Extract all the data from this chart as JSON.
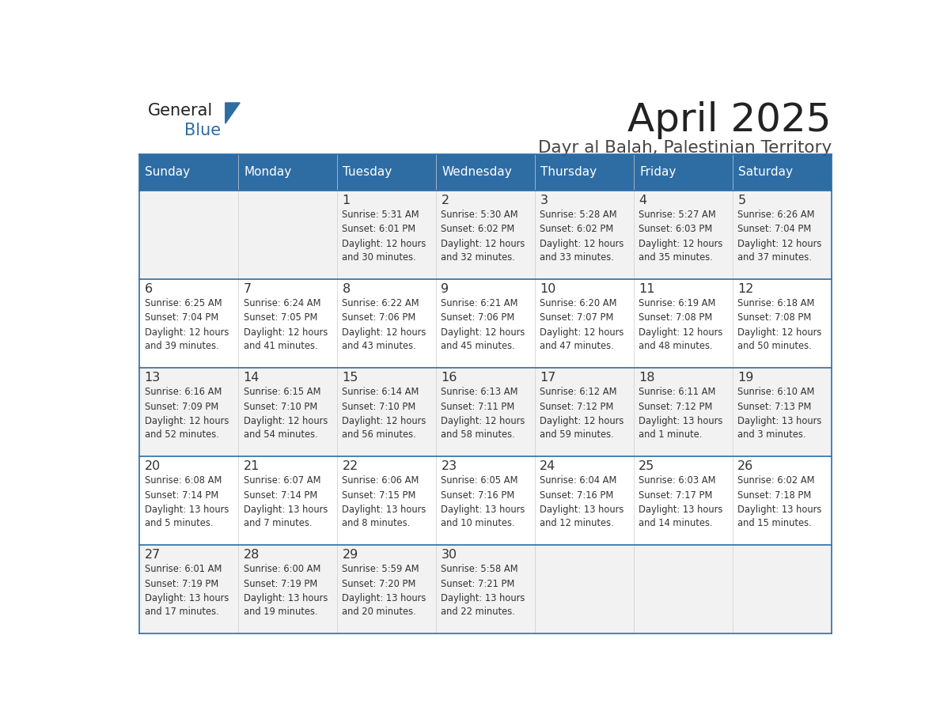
{
  "title": "April 2025",
  "subtitle": "Dayr al Balah, Palestinian Territory",
  "days_of_week": [
    "Sunday",
    "Monday",
    "Tuesday",
    "Wednesday",
    "Thursday",
    "Friday",
    "Saturday"
  ],
  "header_bg": "#2E6DA4",
  "header_text": "#FFFFFF",
  "row_bg_odd": "#F2F2F2",
  "row_bg_even": "#FFFFFF",
  "border_color": "#2E6DA4",
  "text_color": "#333333",
  "calendar_data": [
    [
      {
        "day": "",
        "sunrise": "",
        "sunset": "",
        "daylight": ""
      },
      {
        "day": "",
        "sunrise": "",
        "sunset": "",
        "daylight": ""
      },
      {
        "day": "1",
        "sunrise": "Sunrise: 5:31 AM",
        "sunset": "Sunset: 6:01 PM",
        "daylight": "Daylight: 12 hours\nand 30 minutes."
      },
      {
        "day": "2",
        "sunrise": "Sunrise: 5:30 AM",
        "sunset": "Sunset: 6:02 PM",
        "daylight": "Daylight: 12 hours\nand 32 minutes."
      },
      {
        "day": "3",
        "sunrise": "Sunrise: 5:28 AM",
        "sunset": "Sunset: 6:02 PM",
        "daylight": "Daylight: 12 hours\nand 33 minutes."
      },
      {
        "day": "4",
        "sunrise": "Sunrise: 5:27 AM",
        "sunset": "Sunset: 6:03 PM",
        "daylight": "Daylight: 12 hours\nand 35 minutes."
      },
      {
        "day": "5",
        "sunrise": "Sunrise: 6:26 AM",
        "sunset": "Sunset: 7:04 PM",
        "daylight": "Daylight: 12 hours\nand 37 minutes."
      }
    ],
    [
      {
        "day": "6",
        "sunrise": "Sunrise: 6:25 AM",
        "sunset": "Sunset: 7:04 PM",
        "daylight": "Daylight: 12 hours\nand 39 minutes."
      },
      {
        "day": "7",
        "sunrise": "Sunrise: 6:24 AM",
        "sunset": "Sunset: 7:05 PM",
        "daylight": "Daylight: 12 hours\nand 41 minutes."
      },
      {
        "day": "8",
        "sunrise": "Sunrise: 6:22 AM",
        "sunset": "Sunset: 7:06 PM",
        "daylight": "Daylight: 12 hours\nand 43 minutes."
      },
      {
        "day": "9",
        "sunrise": "Sunrise: 6:21 AM",
        "sunset": "Sunset: 7:06 PM",
        "daylight": "Daylight: 12 hours\nand 45 minutes."
      },
      {
        "day": "10",
        "sunrise": "Sunrise: 6:20 AM",
        "sunset": "Sunset: 7:07 PM",
        "daylight": "Daylight: 12 hours\nand 47 minutes."
      },
      {
        "day": "11",
        "sunrise": "Sunrise: 6:19 AM",
        "sunset": "Sunset: 7:08 PM",
        "daylight": "Daylight: 12 hours\nand 48 minutes."
      },
      {
        "day": "12",
        "sunrise": "Sunrise: 6:18 AM",
        "sunset": "Sunset: 7:08 PM",
        "daylight": "Daylight: 12 hours\nand 50 minutes."
      }
    ],
    [
      {
        "day": "13",
        "sunrise": "Sunrise: 6:16 AM",
        "sunset": "Sunset: 7:09 PM",
        "daylight": "Daylight: 12 hours\nand 52 minutes."
      },
      {
        "day": "14",
        "sunrise": "Sunrise: 6:15 AM",
        "sunset": "Sunset: 7:10 PM",
        "daylight": "Daylight: 12 hours\nand 54 minutes."
      },
      {
        "day": "15",
        "sunrise": "Sunrise: 6:14 AM",
        "sunset": "Sunset: 7:10 PM",
        "daylight": "Daylight: 12 hours\nand 56 minutes."
      },
      {
        "day": "16",
        "sunrise": "Sunrise: 6:13 AM",
        "sunset": "Sunset: 7:11 PM",
        "daylight": "Daylight: 12 hours\nand 58 minutes."
      },
      {
        "day": "17",
        "sunrise": "Sunrise: 6:12 AM",
        "sunset": "Sunset: 7:12 PM",
        "daylight": "Daylight: 12 hours\nand 59 minutes."
      },
      {
        "day": "18",
        "sunrise": "Sunrise: 6:11 AM",
        "sunset": "Sunset: 7:12 PM",
        "daylight": "Daylight: 13 hours\nand 1 minute."
      },
      {
        "day": "19",
        "sunrise": "Sunrise: 6:10 AM",
        "sunset": "Sunset: 7:13 PM",
        "daylight": "Daylight: 13 hours\nand 3 minutes."
      }
    ],
    [
      {
        "day": "20",
        "sunrise": "Sunrise: 6:08 AM",
        "sunset": "Sunset: 7:14 PM",
        "daylight": "Daylight: 13 hours\nand 5 minutes."
      },
      {
        "day": "21",
        "sunrise": "Sunrise: 6:07 AM",
        "sunset": "Sunset: 7:14 PM",
        "daylight": "Daylight: 13 hours\nand 7 minutes."
      },
      {
        "day": "22",
        "sunrise": "Sunrise: 6:06 AM",
        "sunset": "Sunset: 7:15 PM",
        "daylight": "Daylight: 13 hours\nand 8 minutes."
      },
      {
        "day": "23",
        "sunrise": "Sunrise: 6:05 AM",
        "sunset": "Sunset: 7:16 PM",
        "daylight": "Daylight: 13 hours\nand 10 minutes."
      },
      {
        "day": "24",
        "sunrise": "Sunrise: 6:04 AM",
        "sunset": "Sunset: 7:16 PM",
        "daylight": "Daylight: 13 hours\nand 12 minutes."
      },
      {
        "day": "25",
        "sunrise": "Sunrise: 6:03 AM",
        "sunset": "Sunset: 7:17 PM",
        "daylight": "Daylight: 13 hours\nand 14 minutes."
      },
      {
        "day": "26",
        "sunrise": "Sunrise: 6:02 AM",
        "sunset": "Sunset: 7:18 PM",
        "daylight": "Daylight: 13 hours\nand 15 minutes."
      }
    ],
    [
      {
        "day": "27",
        "sunrise": "Sunrise: 6:01 AM",
        "sunset": "Sunset: 7:19 PM",
        "daylight": "Daylight: 13 hours\nand 17 minutes."
      },
      {
        "day": "28",
        "sunrise": "Sunrise: 6:00 AM",
        "sunset": "Sunset: 7:19 PM",
        "daylight": "Daylight: 13 hours\nand 19 minutes."
      },
      {
        "day": "29",
        "sunrise": "Sunrise: 5:59 AM",
        "sunset": "Sunset: 7:20 PM",
        "daylight": "Daylight: 13 hours\nand 20 minutes."
      },
      {
        "day": "30",
        "sunrise": "Sunrise: 5:58 AM",
        "sunset": "Sunset: 7:21 PM",
        "daylight": "Daylight: 13 hours\nand 22 minutes."
      },
      {
        "day": "",
        "sunrise": "",
        "sunset": "",
        "daylight": ""
      },
      {
        "day": "",
        "sunrise": "",
        "sunset": "",
        "daylight": ""
      },
      {
        "day": "",
        "sunrise": "",
        "sunset": "",
        "daylight": ""
      }
    ]
  ],
  "logo_triangle_color": "#2E6DA4"
}
